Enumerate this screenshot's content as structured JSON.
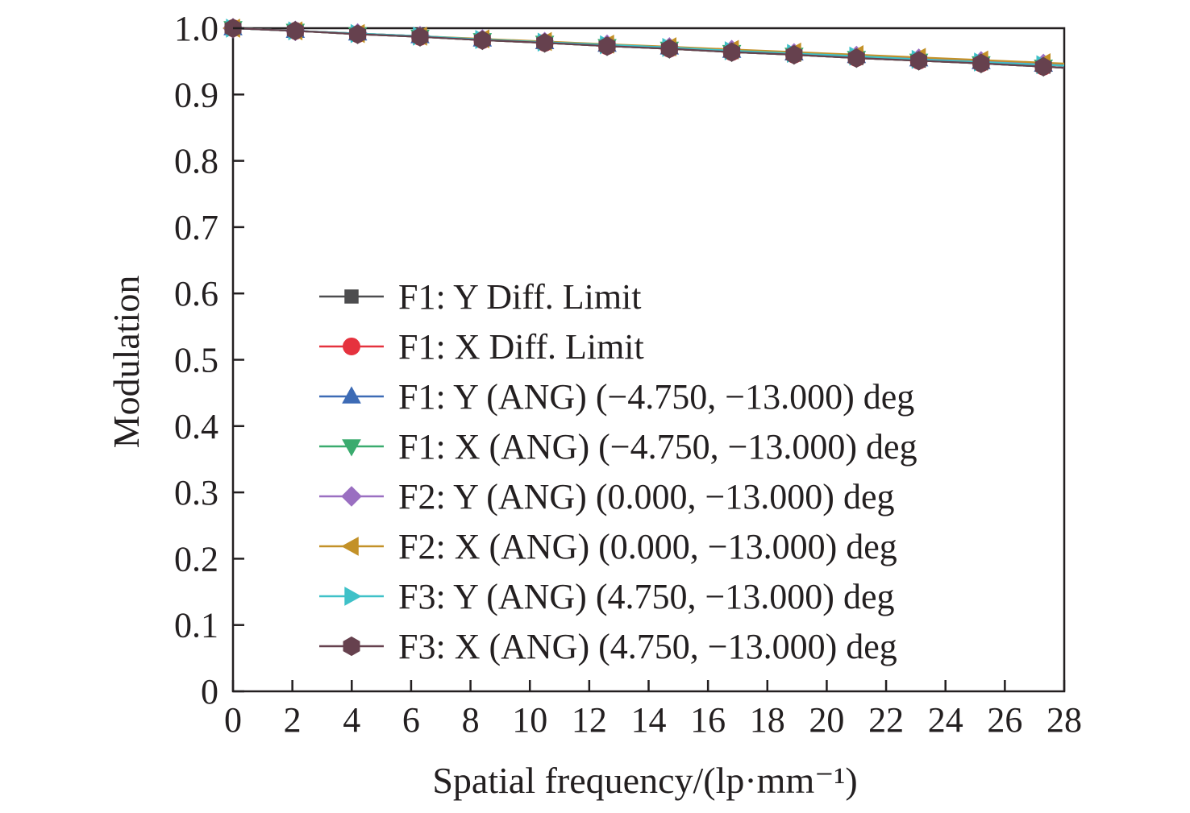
{
  "chart_data": {
    "type": "line",
    "title": "",
    "xlabel": "Spatial frequency/(lp·mm⁻¹)",
    "ylabel": "Modulation",
    "xlim": [
      0,
      28
    ],
    "ylim": [
      0,
      1.0
    ],
    "xticks": [
      0,
      2,
      4,
      6,
      8,
      10,
      12,
      14,
      16,
      18,
      20,
      22,
      24,
      26,
      28
    ],
    "xtick_labels": [
      "0",
      "2",
      "4",
      "6",
      "8",
      "10",
      "12",
      "14",
      "16",
      "18",
      "20",
      "22",
      "24",
      "26",
      "28"
    ],
    "yticks": [
      0,
      0.1,
      0.2,
      0.3,
      0.4,
      0.5,
      0.6,
      0.7,
      0.8,
      0.9,
      1.0
    ],
    "ytick_labels": [
      "0",
      "0.1",
      "0.2",
      "0.3",
      "0.4",
      "0.5",
      "0.6",
      "0.7",
      "0.8",
      "0.9",
      "1.0"
    ],
    "grid": false,
    "legend_position": "lower-left",
    "x": [
      0,
      2.1,
      4.2,
      6.3,
      8.4,
      10.5,
      12.6,
      14.7,
      16.8,
      18.9,
      21.0,
      23.1,
      25.2,
      27.3
    ],
    "series": [
      {
        "name": "F1: Y Diff. Limit",
        "color": "#4d4d4f",
        "marker": "square",
        "values": [
          1.0,
          0.996,
          0.991,
          0.987,
          0.982,
          0.978,
          0.973,
          0.969,
          0.964,
          0.96,
          0.955,
          0.951,
          0.947,
          0.942
        ]
      },
      {
        "name": "F1: X Diff. Limit",
        "color": "#e5323e",
        "marker": "circle",
        "values": [
          1.0,
          0.996,
          0.991,
          0.987,
          0.982,
          0.978,
          0.973,
          0.969,
          0.964,
          0.96,
          0.955,
          0.951,
          0.947,
          0.942
        ]
      },
      {
        "name": "F1: Y (ANG) (−4.750, −13.000) deg",
        "color": "#3d6bb5",
        "marker": "triangle-up",
        "values": [
          1.0,
          0.996,
          0.992,
          0.988,
          0.983,
          0.979,
          0.975,
          0.971,
          0.966,
          0.962,
          0.958,
          0.953,
          0.949,
          0.945
        ]
      },
      {
        "name": "F1: X (ANG) (−4.750, −13.000) deg",
        "color": "#3aab6e",
        "marker": "triangle-down",
        "values": [
          1.0,
          0.996,
          0.991,
          0.987,
          0.982,
          0.978,
          0.973,
          0.969,
          0.964,
          0.96,
          0.955,
          0.951,
          0.947,
          0.942
        ]
      },
      {
        "name": "F2: Y (ANG) (0.000, −13.000) deg",
        "color": "#9a6fc1",
        "marker": "diamond",
        "values": [
          1.0,
          0.996,
          0.992,
          0.988,
          0.983,
          0.979,
          0.975,
          0.971,
          0.967,
          0.962,
          0.958,
          0.954,
          0.95,
          0.946
        ]
      },
      {
        "name": "F2: X (ANG) (0.000, −13.000) deg",
        "color": "#c39128",
        "marker": "triangle-left",
        "values": [
          1.0,
          0.996,
          0.992,
          0.988,
          0.984,
          0.98,
          0.976,
          0.972,
          0.968,
          0.964,
          0.96,
          0.956,
          0.952,
          0.948
        ]
      },
      {
        "name": "F3: Y (ANG) (4.750, −13.000) deg",
        "color": "#3fc1c8",
        "marker": "triangle-right",
        "values": [
          1.0,
          0.996,
          0.992,
          0.988,
          0.983,
          0.979,
          0.975,
          0.971,
          0.966,
          0.962,
          0.958,
          0.953,
          0.949,
          0.945
        ]
      },
      {
        "name": "F3: X (ANG) (4.750, −13.000) deg",
        "color": "#66414e",
        "marker": "hexagon",
        "values": [
          1.0,
          0.996,
          0.991,
          0.987,
          0.982,
          0.978,
          0.973,
          0.969,
          0.964,
          0.96,
          0.955,
          0.951,
          0.947,
          0.942
        ]
      }
    ]
  }
}
